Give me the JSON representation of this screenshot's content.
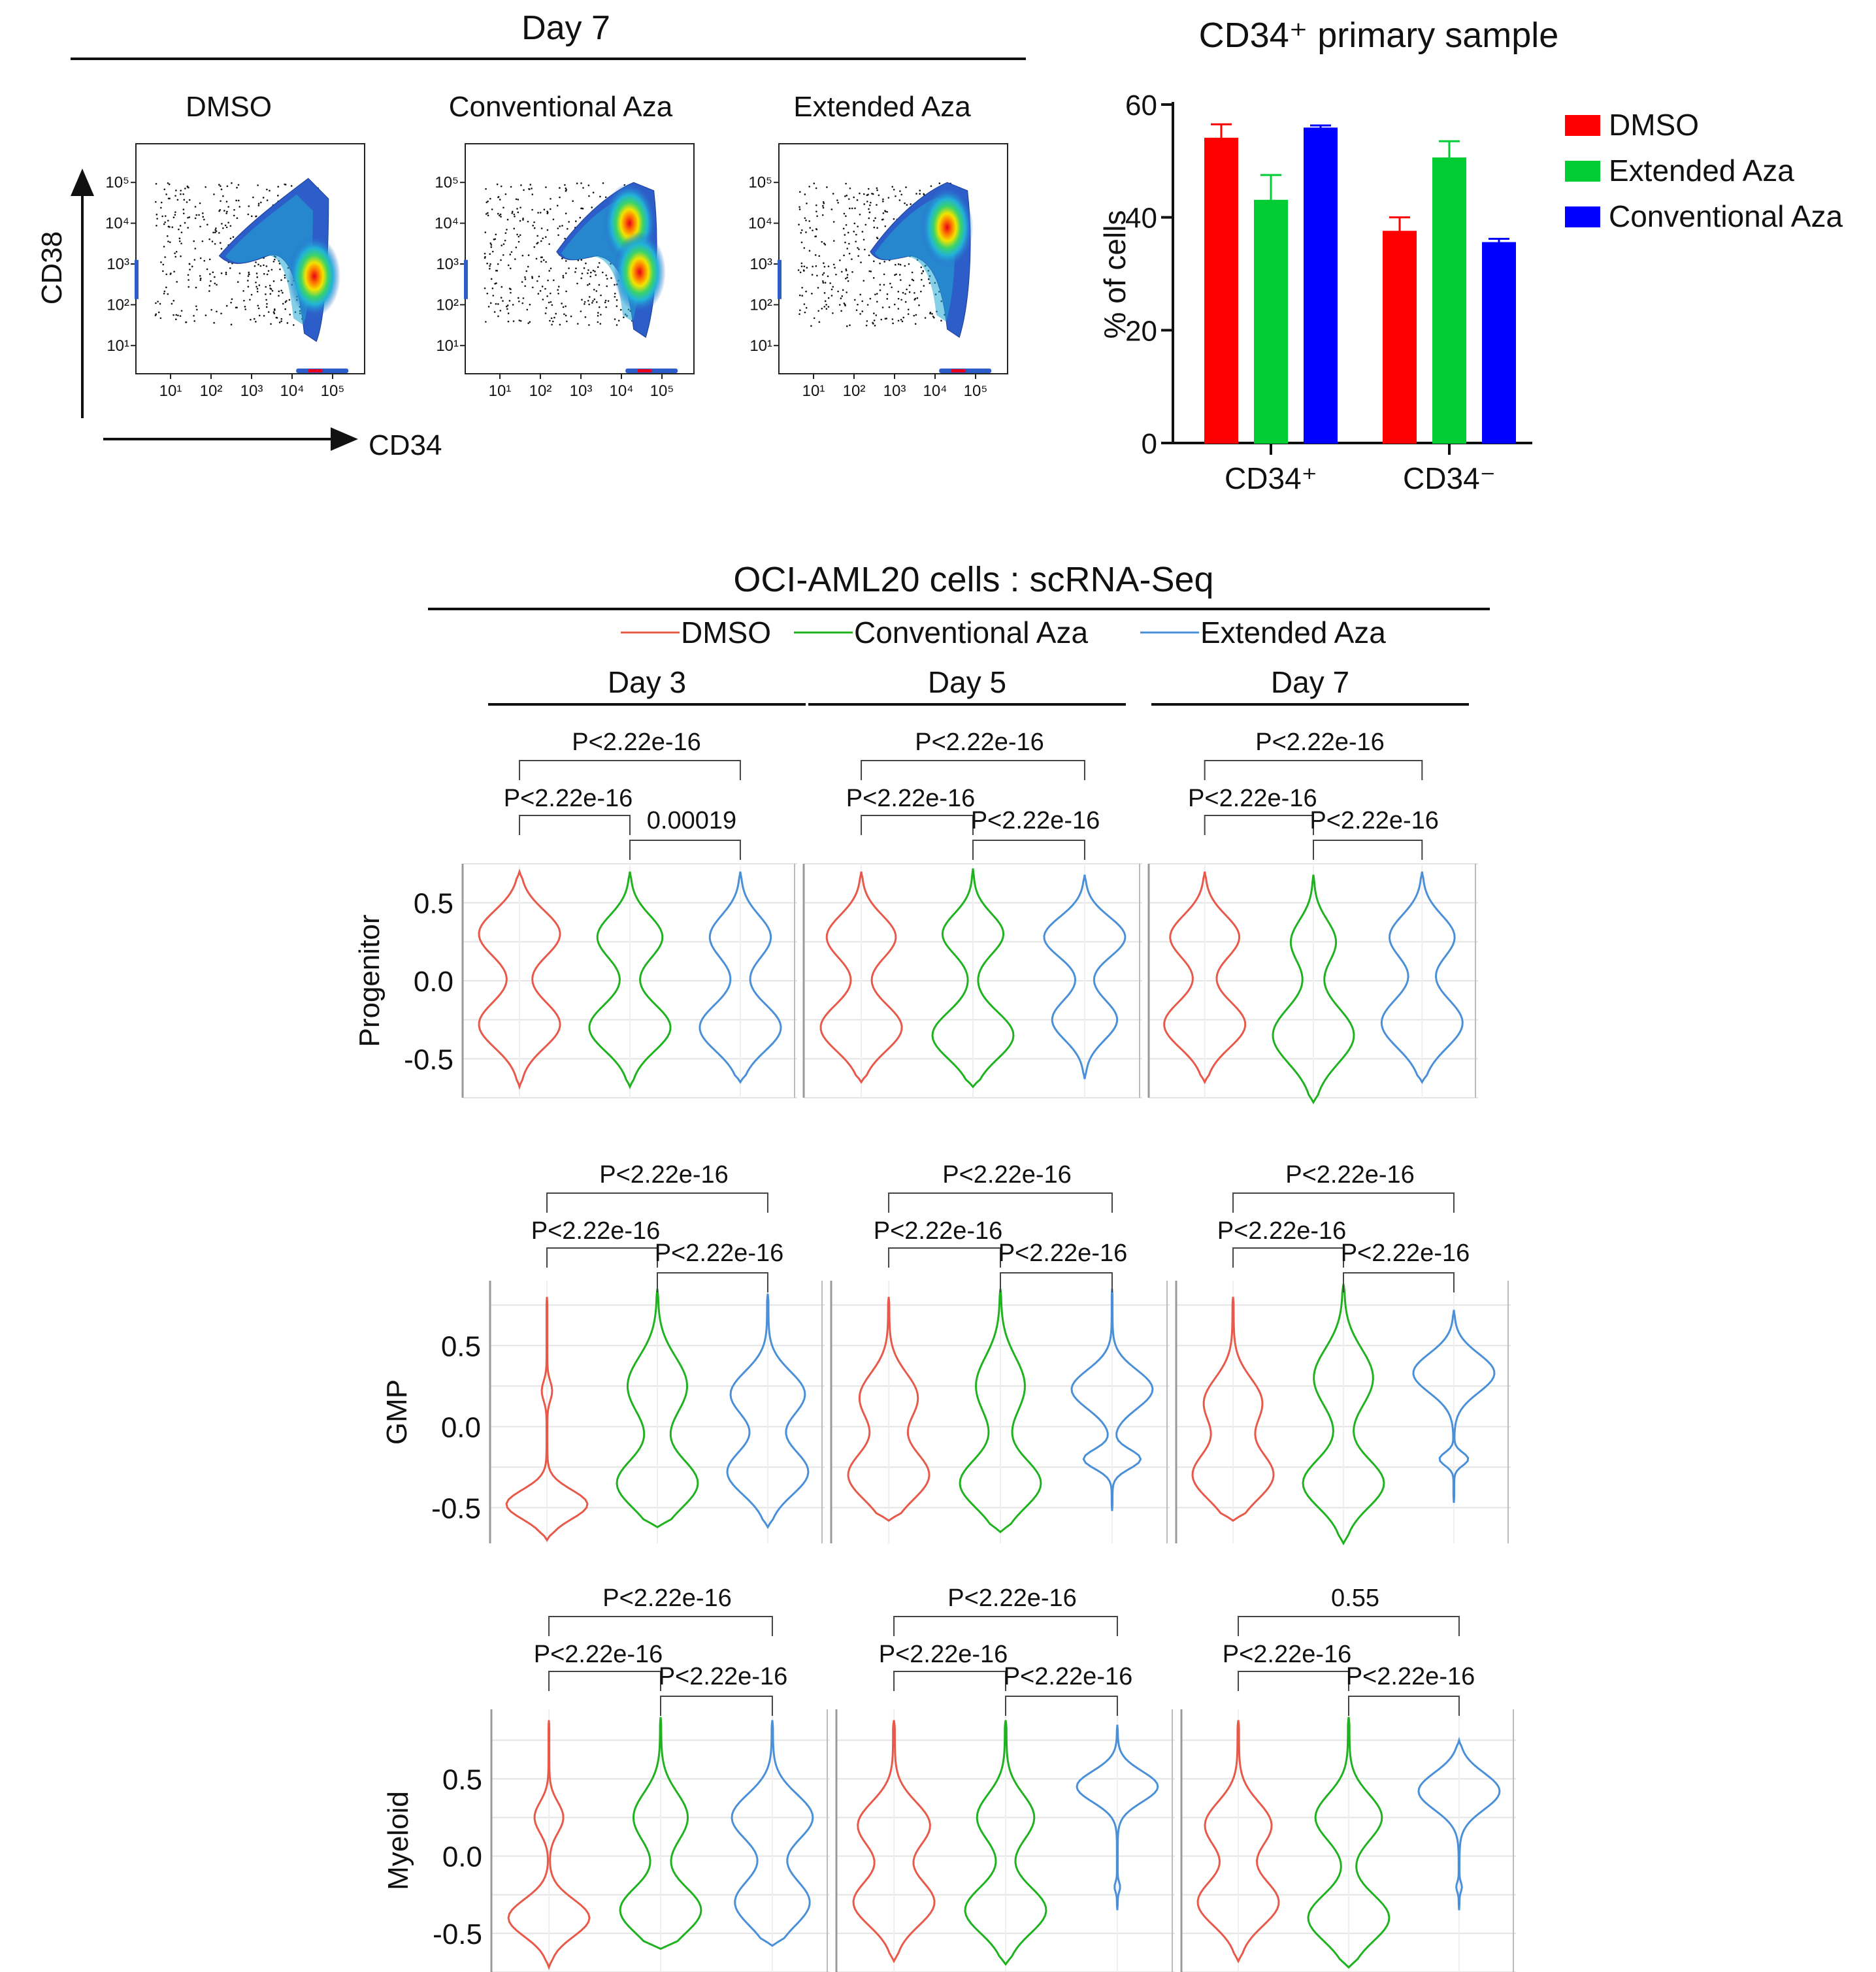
{
  "colors": {
    "dmso": "#ff0000",
    "extended_bar": "#00cc33",
    "conventional_bar": "#0000ff",
    "violin_dmso": "#e8594a",
    "violin_conventional": "#1fb21f",
    "violin_extended": "#4a90d9"
  },
  "flow_panel": {
    "title": "Day 7",
    "panels": [
      {
        "label": "DMSO",
        "hotspots": [
          {
            "x": 4.55,
            "y": 2.7
          }
        ]
      },
      {
        "label": "Conventional Aza",
        "hotspots": [
          {
            "x": 4.2,
            "y": 4.0
          },
          {
            "x": 4.45,
            "y": 2.8
          }
        ]
      },
      {
        "label": "Extended Aza",
        "hotspots": [
          {
            "x": 4.3,
            "y": 3.9
          }
        ]
      }
    ],
    "x_axis_label": "CD34",
    "y_axis_label": "CD38",
    "tick_labels": [
      "10¹",
      "10²",
      "10³",
      "10⁴",
      "10⁵"
    ]
  },
  "chart_data": [
    {
      "type": "bar",
      "title": "CD34⁺ primary sample",
      "categories": [
        "CD34⁺",
        "CD34⁻"
      ],
      "series": [
        {
          "name": "DMSO",
          "values": [
            54,
            37.5
          ],
          "errors": [
            2.5,
            2.5
          ]
        },
        {
          "name": "Extended Aza",
          "values": [
            43,
            50.5
          ],
          "errors": [
            4.5,
            3
          ]
        },
        {
          "name": "Conventional Aza",
          "values": [
            55.8,
            35.5
          ],
          "errors": [
            0.5,
            0.7
          ]
        }
      ],
      "ylabel": "% of cells",
      "ylim": [
        0,
        60
      ],
      "yticks": [
        0,
        20,
        40,
        60
      ],
      "legend": "right"
    },
    {
      "type": "violin",
      "title": "OCI-AML20 cells : scRNA-Seq",
      "legend": [
        "DMSO",
        "Conventional Aza",
        "Extended Aza"
      ],
      "days": [
        "Day 3",
        "Day 5",
        "Day 7"
      ],
      "rows": [
        {
          "ylabel": "Progenitor",
          "yticks": [
            "0.5",
            "0.0",
            "-0.5"
          ],
          "ylim": [
            -0.75,
            0.75
          ],
          "comparisons": [
            [
              "P<2.22e-16",
              "P<2.22e-16",
              "0.00019"
            ],
            [
              "P<2.22e-16",
              "P<2.22e-16",
              "P<2.22e-16"
            ],
            [
              "P<2.22e-16",
              "P<2.22e-16",
              "P<2.22e-16"
            ]
          ],
          "shapes": [
            [
              [
                -0.68,
                0.7,
                [
                  [
                    0.3,
                    0.9,
                    0.15
                  ],
                  [
                    -0.28,
                    0.9,
                    0.15
                  ]
                ]
              ],
              [
                -0.68,
                0.7,
                [
                  [
                    0.28,
                    0.8,
                    0.14
                  ],
                  [
                    -0.3,
                    1.0,
                    0.15
                  ]
                ]
              ],
              [
                -0.65,
                0.7,
                [
                  [
                    0.28,
                    0.75,
                    0.14
                  ],
                  [
                    -0.3,
                    1.0,
                    0.15
                  ]
                ]
              ]
            ],
            [
              [
                -0.65,
                0.7,
                [
                  [
                    0.28,
                    0.85,
                    0.14
                  ],
                  [
                    -0.3,
                    1.0,
                    0.15
                  ]
                ]
              ],
              [
                -0.68,
                0.72,
                [
                  [
                    0.3,
                    0.75,
                    0.13
                  ],
                  [
                    -0.35,
                    1.0,
                    0.15
                  ]
                ]
              ],
              [
                -0.63,
                0.68,
                [
                  [
                    0.28,
                    1.0,
                    0.13
                  ],
                  [
                    -0.25,
                    0.8,
                    0.13
                  ]
                ]
              ]
            ],
            [
              [
                -0.65,
                0.7,
                [
                  [
                    0.28,
                    0.85,
                    0.14
                  ],
                  [
                    -0.28,
                    1.0,
                    0.15
                  ]
                ]
              ],
              [
                -0.78,
                0.68,
                [
                  [
                    0.25,
                    0.55,
                    0.14
                  ],
                  [
                    -0.35,
                    1.0,
                    0.18
                  ]
                ]
              ],
              [
                -0.65,
                0.7,
                [
                  [
                    0.28,
                    0.8,
                    0.14
                  ],
                  [
                    -0.27,
                    1.0,
                    0.16
                  ]
                ]
              ]
            ]
          ]
        },
        {
          "ylabel": "GMP",
          "yticks": [
            "0.5",
            "0.0",
            "-0.5"
          ],
          "ylim": [
            -0.72,
            0.9
          ],
          "comparisons": [
            [
              "P<2.22e-16",
              "P<2.22e-16",
              "P<2.22e-16"
            ],
            [
              "P<2.22e-16",
              "P<2.22e-16",
              "P<2.22e-16"
            ],
            [
              "P<2.22e-16",
              "P<2.22e-16",
              "P<2.22e-16"
            ]
          ],
          "shapes": [
            [
              [
                -0.7,
                0.8,
                [
                  [
                    0.22,
                    0.12,
                    0.06
                  ],
                  [
                    -0.48,
                    1.0,
                    0.09
                  ]
                ]
              ],
              [
                -0.62,
                0.85,
                [
                  [
                    0.25,
                    0.55,
                    0.18
                  ],
                  [
                    -0.35,
                    0.75,
                    0.15
                  ]
                ]
              ],
              [
                -0.62,
                0.82,
                [
                  [
                    0.2,
                    0.55,
                    0.14
                  ],
                  [
                    -0.28,
                    0.6,
                    0.14
                  ]
                ]
              ]
            ],
            [
              [
                -0.58,
                0.8,
                [
                  [
                    0.18,
                    0.5,
                    0.15
                  ],
                  [
                    -0.3,
                    0.7,
                    0.15
                  ]
                ]
              ],
              [
                -0.65,
                0.85,
                [
                  [
                    0.25,
                    0.45,
                    0.18
                  ],
                  [
                    -0.35,
                    0.75,
                    0.15
                  ]
                ]
              ],
              [
                -0.52,
                0.85,
                [
                  [
                    0.23,
                    1.0,
                    0.12
                  ],
                  [
                    -0.2,
                    0.7,
                    0.06
                  ]
                ]
              ]
            ],
            [
              [
                -0.58,
                0.8,
                [
                  [
                    0.15,
                    0.5,
                    0.15
                  ],
                  [
                    -0.3,
                    0.7,
                    0.15
                  ]
                ]
              ],
              [
                -0.72,
                0.88,
                [
                  [
                    0.3,
                    0.4,
                    0.18
                  ],
                  [
                    -0.35,
                    0.55,
                    0.15
                  ]
                ]
              ],
              [
                -0.47,
                0.72,
                [
                  [
                    0.33,
                    1.0,
                    0.12
                  ],
                  [
                    -0.2,
                    0.35,
                    0.04
                  ]
                ]
              ]
            ]
          ]
        },
        {
          "ylabel": "Myeloid",
          "yticks": [
            "0.5",
            "0.0",
            "-0.5"
          ],
          "ylim": [
            -0.75,
            0.95
          ],
          "comparisons": [
            [
              "P<2.22e-16",
              "P<2.22e-16",
              "P<2.22e-16"
            ],
            [
              "P<2.22e-16",
              "P<2.22e-16",
              "P<2.22e-16"
            ],
            [
              "0.55",
              "P<2.22e-16",
              "P<2.22e-16"
            ]
          ],
          "shapes": [
            [
              [
                -0.72,
                0.88,
                [
                  [
                    0.25,
                    0.35,
                    0.1
                  ],
                  [
                    -0.4,
                    1.0,
                    0.12
                  ]
                ]
              ],
              [
                -0.6,
                0.9,
                [
                  [
                    0.25,
                    0.5,
                    0.16
                  ],
                  [
                    -0.35,
                    0.75,
                    0.15
                  ]
                ]
              ],
              [
                -0.58,
                0.88,
                [
                  [
                    0.25,
                    0.65,
                    0.15
                  ],
                  [
                    -0.3,
                    0.6,
                    0.15
                  ]
                ]
              ]
            ],
            [
              [
                -0.68,
                0.88,
                [
                  [
                    0.2,
                    0.4,
                    0.15
                  ],
                  [
                    -0.3,
                    0.45,
                    0.15
                  ]
                ]
              ],
              [
                -0.7,
                0.88,
                [
                  [
                    0.25,
                    0.35,
                    0.15
                  ],
                  [
                    -0.35,
                    0.5,
                    0.15
                  ]
                ]
              ],
              [
                -0.35,
                0.85,
                [
                  [
                    0.45,
                    1.0,
                    0.1
                  ],
                  [
                    -0.2,
                    0.06,
                    0.03
                  ]
                ]
              ]
            ],
            [
              [
                -0.68,
                0.88,
                [
                  [
                    0.2,
                    0.45,
                    0.15
                  ],
                  [
                    -0.3,
                    0.55,
                    0.15
                  ]
                ]
              ],
              [
                -0.72,
                0.9,
                [
                  [
                    0.25,
                    0.45,
                    0.15
                  ],
                  [
                    -0.4,
                    0.55,
                    0.15
                  ]
                ]
              ],
              [
                -0.35,
                0.75,
                [
                  [
                    0.42,
                    1.0,
                    0.12
                  ],
                  [
                    -0.2,
                    0.06,
                    0.03
                  ]
                ]
              ]
            ]
          ]
        }
      ]
    }
  ]
}
